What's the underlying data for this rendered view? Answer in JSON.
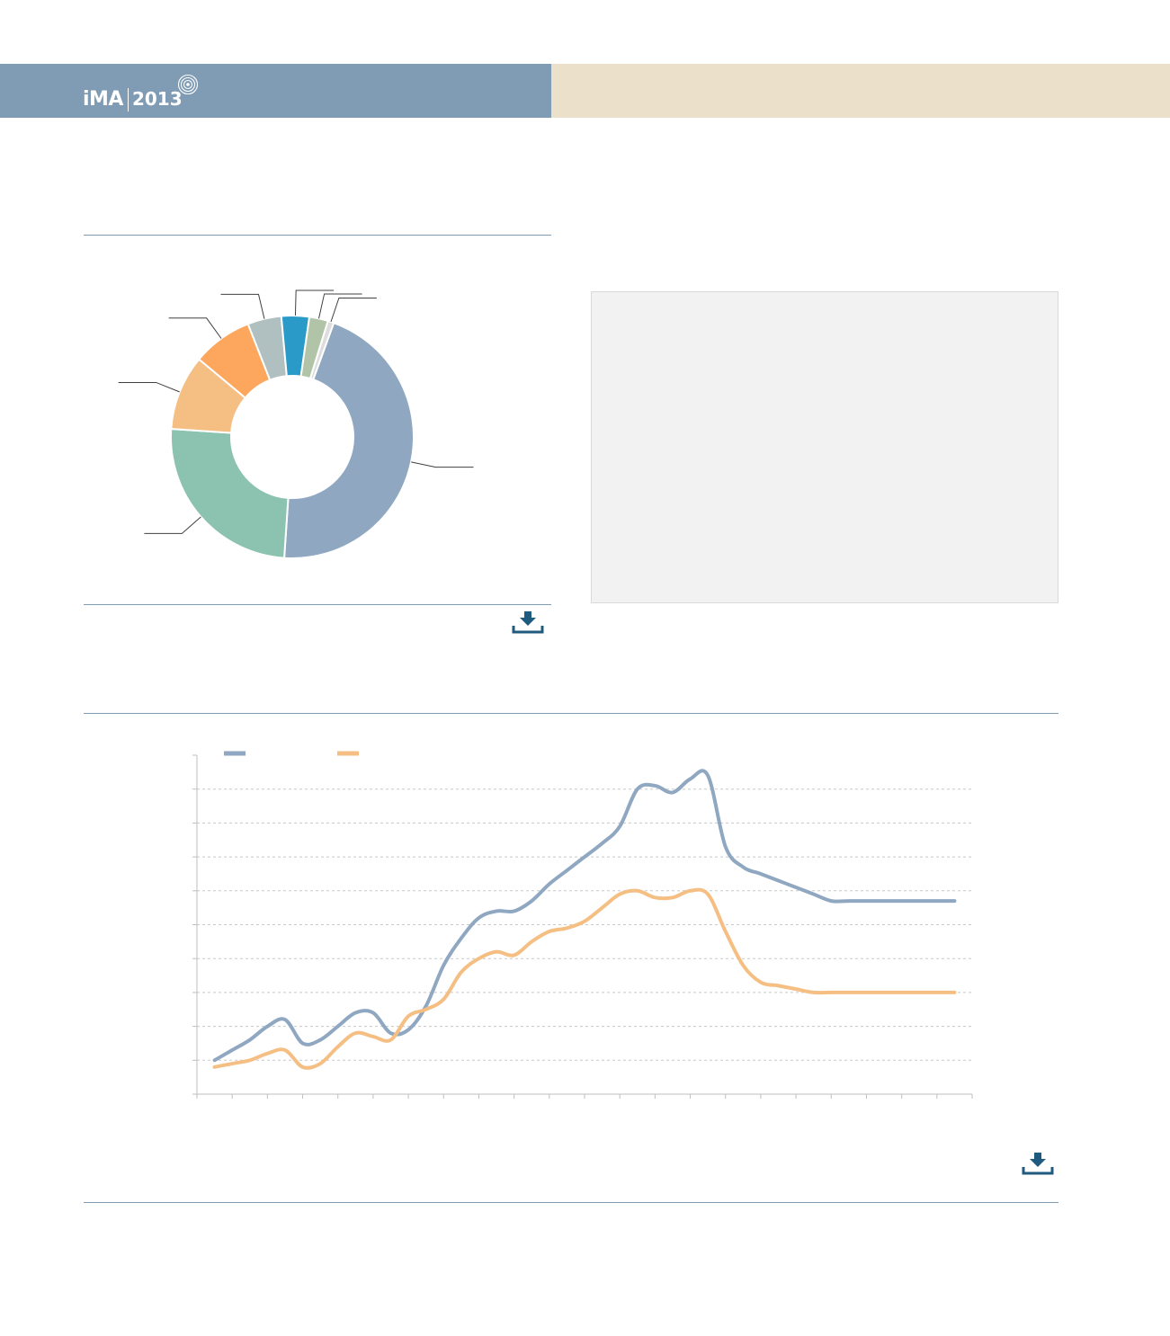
{
  "header": {
    "logo_brand": "iMA",
    "logo_year": "2013",
    "left_color": "#7f9cb4",
    "right_color": "#ebe0ca"
  },
  "panel": {
    "color": "#f2f2f2"
  },
  "icons": {
    "download_1": "download-icon",
    "download_2": "download-icon",
    "logo_mark": "concentric-rings-icon"
  },
  "chart_data": [
    {
      "type": "pie",
      "donut": true,
      "title": "",
      "slices": [
        {
          "value": 45.5,
          "color": "#8fa7c1"
        },
        {
          "value": 25.0,
          "color": "#8cc2b0"
        },
        {
          "value": 10.0,
          "color": "#f5bf84"
        },
        {
          "value": 8.0,
          "color": "#fca65e"
        },
        {
          "value": 4.5,
          "color": "#b0bfbf"
        },
        {
          "value": 3.7,
          "color": "#2a9bc9"
        },
        {
          "value": 2.5,
          "color": "#b2c4a8"
        },
        {
          "value": 0.8,
          "color": "#dddddd"
        }
      ],
      "legend": "none"
    },
    {
      "type": "line",
      "title": "",
      "x": [
        1,
        1.5,
        2,
        2.5,
        3,
        3.5,
        4,
        4.5,
        5,
        5.5,
        6,
        6.5,
        7,
        7.5,
        8,
        8.5,
        9,
        9.5,
        10,
        10.5,
        11,
        11.5,
        12,
        12.5,
        13,
        13.5,
        14,
        14.5,
        15,
        15.5,
        16,
        16.5,
        17,
        17.5,
        18,
        18.5,
        19,
        19.5,
        20,
        20.5,
        21,
        21.5,
        22
      ],
      "ylim": [
        0,
        10
      ],
      "xlim": [
        0.5,
        22.5
      ],
      "grid": "horizontal-dashed",
      "legend": "top-left",
      "series": [
        {
          "color": "#8fa7c1",
          "values": [
            1.0,
            1.3,
            1.6,
            2.0,
            2.2,
            1.5,
            1.6,
            2.0,
            2.4,
            2.4,
            1.8,
            1.9,
            2.6,
            3.8,
            4.6,
            5.2,
            5.4,
            5.4,
            5.7,
            6.2,
            6.6,
            7.0,
            7.4,
            7.9,
            9.0,
            9.1,
            8.9,
            9.3,
            9.4,
            7.3,
            6.7,
            6.5,
            6.3,
            6.1,
            5.9,
            5.7,
            5.7,
            5.7,
            5.7,
            5.7,
            5.7,
            5.7,
            5.7
          ]
        },
        {
          "color": "#f5bf84",
          "values": [
            0.8,
            0.9,
            1.0,
            1.2,
            1.3,
            0.8,
            0.9,
            1.4,
            1.8,
            1.7,
            1.6,
            2.3,
            2.5,
            2.8,
            3.6,
            4.0,
            4.2,
            4.1,
            4.5,
            4.8,
            4.9,
            5.1,
            5.5,
            5.9,
            6.0,
            5.8,
            5.8,
            6.0,
            5.9,
            4.8,
            3.8,
            3.3,
            3.2,
            3.1,
            3.0,
            3.0,
            3.0,
            3.0,
            3.0,
            3.0,
            3.0,
            3.0,
            3.0
          ]
        }
      ]
    }
  ]
}
